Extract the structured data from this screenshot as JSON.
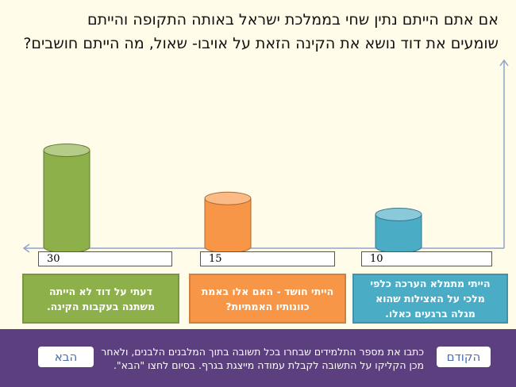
{
  "question": [
    "אם אתם הייתם נתין שחי בממלכת ישראל באותה התקופה והייתם",
    "שומעים את דוד נושא את הקינה הזאת על אויבו- שאול, מה הייתם חושבים?"
  ],
  "chart_data": {
    "type": "bar",
    "categories": [
      "דעתי על דוד לא הייתה משתנה בעקבות הקינה.",
      "הייתי חושד - האם אלו באמת כוונותיו האמתיות?",
      "הייתי מתמלא הערכה כלפי מלכי על האצילות שהוא מגלה ברגעים כאלו."
    ],
    "values": [
      30,
      15,
      10
    ],
    "colors": [
      "#8db04a",
      "#f79646",
      "#4bacc6"
    ],
    "ylim": [
      0,
      58
    ]
  },
  "instructions": "כתבו את מספר התלמידים שבחרו בכל תשובה בתוך המלבנים הלבנים, ולאחר מכן הקליקו על התשובה לקבלת עמודה מייצגת בגרף. בסיום לחצו \"הבא\".",
  "buttons": {
    "prev": "הקודם",
    "next": "הבא"
  }
}
